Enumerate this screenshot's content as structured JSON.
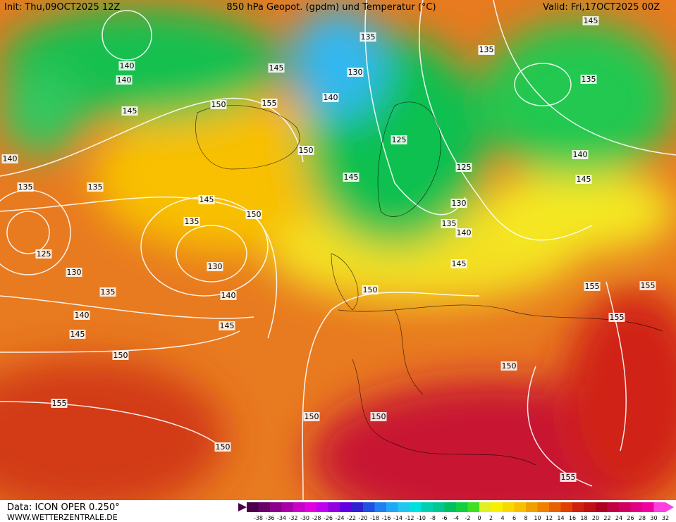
{
  "header": {
    "init": "Init: Thu,09OCT2025 12Z",
    "title": "850 hPa Geopot. (gpdm) und Temperatur (°C)",
    "valid": "Valid: Fri,17OCT2025 00Z"
  },
  "footer": {
    "data": "Data: ICON OPER 0.250°",
    "site": "WWW.WETTERZENTRALE.DE"
  },
  "map": {
    "contour_labels": [
      145,
      135,
      140,
      145,
      150,
      155,
      130,
      135,
      140,
      130,
      125,
      135,
      145,
      135,
      140,
      145,
      140,
      135,
      125,
      130,
      135,
      140,
      145,
      140,
      150,
      150,
      145,
      135,
      130,
      150,
      145,
      140,
      135,
      130,
      125,
      140,
      145,
      150,
      145,
      150,
      155,
      150,
      150,
      150,
      155,
      155,
      155,
      155
    ]
  },
  "colorbar": {
    "labels": [
      -38,
      -36,
      -34,
      -32,
      -30,
      -28,
      -26,
      -24,
      -22,
      -20,
      -18,
      -16,
      -14,
      -12,
      -10,
      -8,
      -6,
      -4,
      -2,
      0,
      2,
      4,
      6,
      8,
      10,
      12,
      14,
      16,
      18,
      20,
      22,
      24,
      26,
      28,
      30,
      32
    ],
    "colors": [
      "#4a004a",
      "#6a006a",
      "#8a008a",
      "#a800a8",
      "#c800c8",
      "#e000e0",
      "#c000f0",
      "#9000e0",
      "#6000e0",
      "#3020d0",
      "#2050e0",
      "#2080f0",
      "#20a8f8",
      "#20c8f0",
      "#00e0e0",
      "#00d0b0",
      "#00c890",
      "#00c060",
      "#10d040",
      "#40e020",
      "#e0f020",
      "#f8f000",
      "#f8d800",
      "#f8c000",
      "#f0a000",
      "#f08000",
      "#e86000",
      "#e04000",
      "#d02010",
      "#c01010",
      "#b00020",
      "#c00040",
      "#d00060",
      "#e00080",
      "#f000a0",
      "#ff40e0"
    ]
  }
}
